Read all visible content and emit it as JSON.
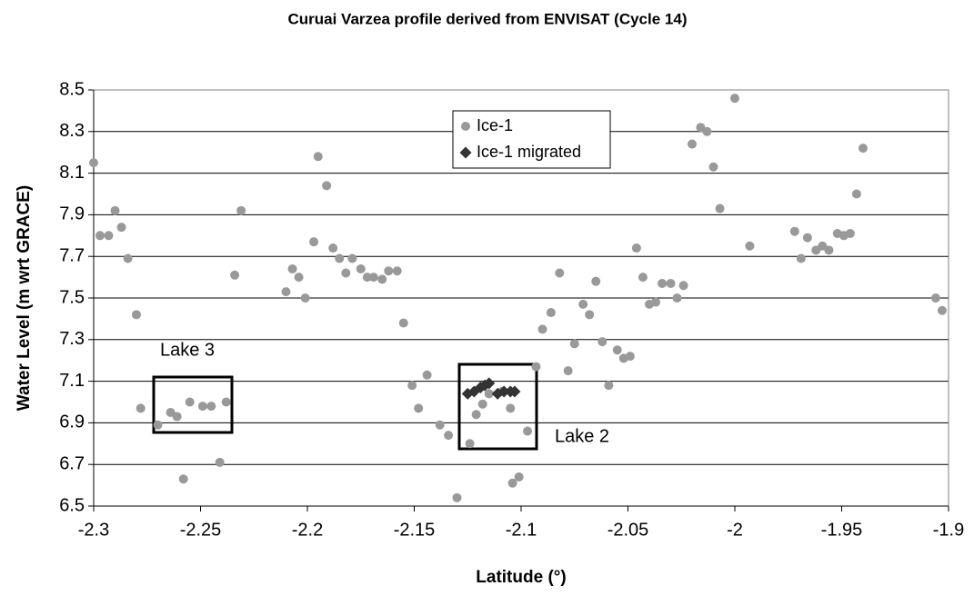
{
  "chart_data": {
    "type": "scatter",
    "title": "Curuai Varzea profile derived from ENVISAT (Cycle 14)",
    "xlabel": "Latitude (°)",
    "ylabel": "Water Level (m wrt GRACE)",
    "xlim": [
      -2.3,
      -1.9
    ],
    "xticks": [
      -2.3,
      -2.25,
      -2.2,
      -2.15,
      -2.1,
      -2.05,
      -2,
      -1.95,
      -1.9
    ],
    "ylim": [
      6.5,
      8.5
    ],
    "yticks": [
      6.5,
      6.7,
      6.9,
      7.1,
      7.3,
      7.5,
      7.7,
      7.9,
      8.1,
      8.3,
      8.5
    ],
    "grid": true,
    "legend": "top-center",
    "annotations": [
      "Lake 3",
      "Lake 2"
    ],
    "series": [
      {
        "name": "Ice-1",
        "color": "#999999",
        "marker": "circle",
        "x": [
          -2.3,
          -2.297,
          -2.293,
          -2.29,
          -2.287,
          -2.284,
          -2.28,
          -2.278,
          -2.27,
          -2.264,
          -2.261,
          -2.258,
          -2.255,
          -2.249,
          -2.245,
          -2.241,
          -2.238,
          -2.234,
          -2.231,
          -2.21,
          -2.207,
          -2.204,
          -2.201,
          -2.197,
          -2.195,
          -2.191,
          -2.188,
          -2.185,
          -2.182,
          -2.179,
          -2.175,
          -2.172,
          -2.169,
          -2.165,
          -2.162,
          -2.158,
          -2.155,
          -2.151,
          -2.148,
          -2.144,
          -2.138,
          -2.134,
          -2.13,
          -2.124,
          -2.121,
          -2.118,
          -2.115,
          -2.109,
          -2.105,
          -2.104,
          -2.101,
          -2.097,
          -2.093,
          -2.09,
          -2.086,
          -2.082,
          -2.078,
          -2.075,
          -2.071,
          -2.068,
          -2.065,
          -2.062,
          -2.059,
          -2.055,
          -2.052,
          -2.049,
          -2.046,
          -2.043,
          -2.04,
          -2.037,
          -2.034,
          -2.03,
          -2.027,
          -2.024,
          -2.02,
          -2.016,
          -2.013,
          -2.01,
          -2.007,
          -2.0,
          -1.993,
          -1.972,
          -1.969,
          -1.966,
          -1.962,
          -1.959,
          -1.956,
          -1.952,
          -1.949,
          -1.946,
          -1.943,
          -1.94,
          -1.906,
          -1.903
        ],
        "values": [
          8.15,
          7.8,
          7.8,
          7.92,
          7.84,
          7.69,
          7.42,
          6.97,
          6.89,
          6.95,
          6.93,
          6.63,
          7.0,
          6.98,
          6.98,
          6.71,
          7.0,
          7.61,
          7.92,
          7.53,
          7.64,
          7.6,
          7.5,
          7.77,
          8.18,
          8.04,
          7.74,
          7.69,
          7.62,
          7.69,
          7.64,
          7.6,
          7.6,
          7.59,
          7.63,
          7.63,
          7.38,
          7.08,
          6.97,
          7.13,
          6.89,
          6.84,
          6.54,
          6.8,
          6.94,
          6.99,
          7.04,
          7.05,
          6.97,
          6.61,
          6.64,
          6.86,
          7.17,
          7.35,
          7.43,
          7.62,
          7.15,
          7.28,
          7.47,
          7.42,
          7.58,
          7.29,
          7.08,
          7.25,
          7.21,
          7.22,
          7.74,
          7.6,
          7.47,
          7.48,
          7.57,
          7.57,
          7.5,
          7.56,
          8.24,
          8.32,
          8.3,
          8.13,
          7.93,
          8.46,
          7.75,
          7.82,
          7.69,
          7.79,
          7.73,
          7.75,
          7.73,
          7.81,
          7.8,
          7.81,
          8.0,
          8.22,
          7.5,
          7.44
        ]
      },
      {
        "name": "Ice-1 migrated",
        "color": "#333333",
        "marker": "diamond",
        "x": [
          -2.125,
          -2.122,
          -2.119,
          -2.117,
          -2.115,
          -2.111,
          -2.108,
          -2.105,
          -2.103
        ],
        "values": [
          7.04,
          7.05,
          7.07,
          7.08,
          7.09,
          7.04,
          7.05,
          7.05,
          7.05
        ]
      }
    ]
  }
}
